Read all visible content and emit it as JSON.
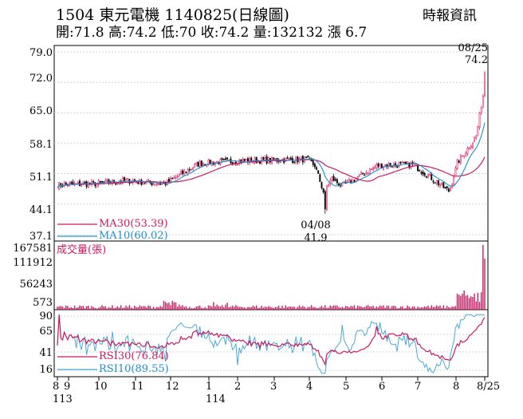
{
  "header": {
    "title": "1504  東元電機 1140825(日線圖)",
    "source": "時報資訊",
    "ohlc": "開:71.8 高:74.2 低:70 收:74.2 量:132132 漲 6.7"
  },
  "colors": {
    "up": "#e8206a",
    "down": "#000000",
    "ma10": "#1e90c8",
    "ma30": "#cc1a60",
    "volume": "#cc1a60",
    "rsi10": "#4aa8d8",
    "rsi30": "#cc1a60",
    "grid": "#cfd6e0"
  },
  "chart_data": [
    {
      "type": "candlestick",
      "name": "price",
      "y_ticks": [
        "79.0",
        "72.0",
        "65.0",
        "58.1",
        "51.1",
        "44.1",
        "37.1"
      ],
      "y_tick_values": [
        79.0,
        72.0,
        65.0,
        58.1,
        51.1,
        44.1,
        37.1
      ],
      "ylim": [
        37.1,
        79.0
      ],
      "legend": [
        {
          "label": "MA30(53.39)",
          "series": "ma30"
        },
        {
          "label": "MA10(60.02)",
          "series": "ma10"
        }
      ],
      "annotations": [
        {
          "date": "04/08",
          "value": "41.9"
        },
        {
          "date": "08/25",
          "value": "74.2"
        }
      ],
      "monthly_close_estimates": [
        {
          "month": "8 (2024)",
          "close": 48.5
        },
        {
          "month": "9",
          "close": 48.8
        },
        {
          "month": "10",
          "close": 49.5
        },
        {
          "month": "11",
          "close": 48.7
        },
        {
          "month": "12",
          "close": 53.5
        },
        {
          "month": "1",
          "close": 54.0
        },
        {
          "month": "2",
          "close": 54.2
        },
        {
          "month": "3",
          "close": 54.4
        },
        {
          "month": "4",
          "close": 48.2
        },
        {
          "month": "5",
          "close": 53.0
        },
        {
          "month": "6",
          "close": 53.2
        },
        {
          "month": "7",
          "close": 47.0
        },
        {
          "month": "8 (2025)",
          "close": 74.2
        }
      ]
    },
    {
      "type": "bar",
      "name": "volume",
      "label": "成交量(張)",
      "y_ticks": [
        "167581",
        "111912",
        "56243",
        "573"
      ],
      "y_tick_values": [
        167581,
        111912,
        56243,
        573
      ],
      "ylim": [
        573,
        167581
      ]
    },
    {
      "type": "line",
      "name": "rsi",
      "y_ticks": [
        "90",
        "65",
        "41",
        "16"
      ],
      "y_tick_values": [
        90,
        65,
        41,
        16
      ],
      "ylim": [
        16,
        90
      ],
      "legend": [
        {
          "label": "RSI30(76.84)",
          "series": "rsi30"
        },
        {
          "label": "RSI10(89.55)",
          "series": "rsi10"
        }
      ]
    }
  ],
  "x_axis": {
    "ticks": [
      "8",
      "9",
      "10",
      "11",
      "12",
      "1",
      "2",
      "3",
      "4",
      "5",
      "6",
      "7",
      "8",
      "8/25"
    ],
    "years": [
      "113",
      "114"
    ]
  }
}
